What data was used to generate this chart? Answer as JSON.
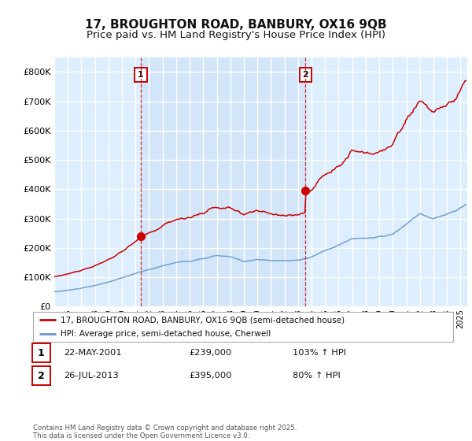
{
  "title": "17, BROUGHTON ROAD, BANBURY, OX16 9QB",
  "subtitle": "Price paid vs. HM Land Registry's House Price Index (HPI)",
  "ylim": [
    0,
    850000
  ],
  "yticks": [
    0,
    100000,
    200000,
    300000,
    400000,
    500000,
    600000,
    700000,
    800000
  ],
  "ytick_labels": [
    "£0",
    "£100K",
    "£200K",
    "£300K",
    "£400K",
    "£500K",
    "£600K",
    "£700K",
    "£800K"
  ],
  "xlim_start": 1995.0,
  "xlim_end": 2025.5,
  "sale1_x": 2001.388,
  "sale1_y": 239000,
  "sale1_label": "1",
  "sale1_date": "22-MAY-2001",
  "sale1_price": "£239,000",
  "sale1_hpi": "103% ↑ HPI",
  "sale2_x": 2013.558,
  "sale2_y": 395000,
  "sale2_label": "2",
  "sale2_date": "26-JUL-2013",
  "sale2_price": "£395,000",
  "sale2_hpi": "80% ↑ HPI",
  "legend_line1": "17, BROUGHTON ROAD, BANBURY, OX16 9QB (semi-detached house)",
  "legend_line2": "HPI: Average price, semi-detached house, Cherwell",
  "footer": "Contains HM Land Registry data © Crown copyright and database right 2025.\nThis data is licensed under the Open Government Licence v3.0.",
  "line_color_red": "#cc0000",
  "line_color_blue": "#6699cc",
  "bg_color": "#ddeeff",
  "shade_color": "#ddeeff",
  "grid_color": "#ffffff",
  "title_fontsize": 11,
  "subtitle_fontsize": 9.5
}
